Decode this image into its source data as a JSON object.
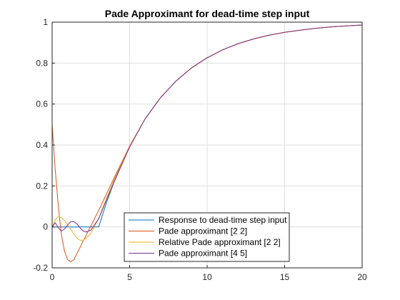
{
  "chart_data": {
    "type": "line",
    "title": "Pade Approximant for dead-time step input",
    "xlabel": "",
    "ylabel": "",
    "xlim": [
      0,
      20
    ],
    "ylim": [
      -0.2,
      1
    ],
    "x_ticks": [
      "0",
      "5",
      "10",
      "15",
      "20"
    ],
    "y_ticks": [
      "-0.2",
      "0",
      "0.2",
      "0.4",
      "0.6",
      "0.8",
      "1"
    ],
    "grid": true,
    "legend_position": "bottom-center",
    "series": [
      {
        "name": "Response to dead-time step input",
        "color": "#0072BD",
        "points": [
          [
            0,
            0
          ],
          [
            3,
            0
          ],
          [
            3.5,
            0.117
          ],
          [
            4,
            0.221
          ],
          [
            5,
            0.393
          ],
          [
            6,
            0.528
          ],
          [
            7,
            0.632
          ],
          [
            8,
            0.713
          ],
          [
            9,
            0.777
          ],
          [
            10,
            0.826
          ],
          [
            11,
            0.865
          ],
          [
            12,
            0.895
          ],
          [
            13,
            0.918
          ],
          [
            14,
            0.936
          ],
          [
            15,
            0.95
          ],
          [
            16,
            0.961
          ],
          [
            17,
            0.97
          ],
          [
            18,
            0.977
          ],
          [
            19,
            0.982
          ],
          [
            20,
            0.986
          ]
        ]
      },
      {
        "name": "Pade approximant [2 2]",
        "color": "#D95319",
        "points": [
          [
            0,
            0.5
          ],
          [
            0.2,
            0.28
          ],
          [
            0.4,
            0.1
          ],
          [
            0.6,
            -0.04
          ],
          [
            0.8,
            -0.12
          ],
          [
            1.0,
            -0.16
          ],
          [
            1.2,
            -0.17
          ],
          [
            1.4,
            -0.16
          ],
          [
            1.6,
            -0.13
          ],
          [
            1.8,
            -0.1
          ],
          [
            2.0,
            -0.07
          ],
          [
            2.4,
            -0.01
          ],
          [
            3.0,
            0.08
          ],
          [
            3.5,
            0.16
          ],
          [
            4,
            0.24
          ],
          [
            5,
            0.395
          ],
          [
            6,
            0.528
          ],
          [
            7,
            0.632
          ],
          [
            8,
            0.713
          ],
          [
            9,
            0.777
          ],
          [
            10,
            0.826
          ],
          [
            11,
            0.865
          ],
          [
            12,
            0.895
          ],
          [
            13,
            0.918
          ],
          [
            14,
            0.936
          ],
          [
            15,
            0.95
          ],
          [
            16,
            0.961
          ],
          [
            17,
            0.97
          ],
          [
            18,
            0.977
          ],
          [
            19,
            0.982
          ],
          [
            20,
            0.986
          ]
        ]
      },
      {
        "name": "Relative Pade approximant [2 2]",
        "color": "#EDB120",
        "points": [
          [
            0,
            0
          ],
          [
            0.2,
            0.035
          ],
          [
            0.4,
            0.05
          ],
          [
            0.6,
            0.045
          ],
          [
            0.8,
            0.03
          ],
          [
            1.0,
            0.01
          ],
          [
            1.2,
            -0.01
          ],
          [
            1.4,
            -0.035
          ],
          [
            1.6,
            -0.055
          ],
          [
            1.8,
            -0.065
          ],
          [
            2.0,
            -0.065
          ],
          [
            2.2,
            -0.055
          ],
          [
            2.5,
            -0.03
          ],
          [
            3.0,
            0.04
          ],
          [
            3.5,
            0.14
          ],
          [
            4,
            0.23
          ],
          [
            5,
            0.393
          ],
          [
            6,
            0.528
          ],
          [
            7,
            0.632
          ],
          [
            8,
            0.713
          ],
          [
            9,
            0.777
          ],
          [
            10,
            0.826
          ],
          [
            11,
            0.865
          ],
          [
            12,
            0.895
          ],
          [
            13,
            0.918
          ],
          [
            14,
            0.936
          ],
          [
            15,
            0.95
          ],
          [
            16,
            0.961
          ],
          [
            17,
            0.97
          ],
          [
            18,
            0.977
          ],
          [
            19,
            0.982
          ],
          [
            20,
            0.986
          ]
        ]
      },
      {
        "name": "Pade approximant [4 5]",
        "color": "#7E2F8E",
        "points": [
          [
            0,
            0
          ],
          [
            0.2,
            0.02
          ],
          [
            0.4,
            -0.005
          ],
          [
            0.6,
            -0.02
          ],
          [
            0.8,
            -0.01
          ],
          [
            1.0,
            0.01
          ],
          [
            1.2,
            0.025
          ],
          [
            1.4,
            0.025
          ],
          [
            1.6,
            0.015
          ],
          [
            1.8,
            -0.005
          ],
          [
            2.0,
            -0.02
          ],
          [
            2.2,
            -0.025
          ],
          [
            2.5,
            -0.015
          ],
          [
            3.0,
            0.04
          ],
          [
            3.5,
            0.13
          ],
          [
            4,
            0.22
          ],
          [
            5,
            0.39
          ],
          [
            6,
            0.528
          ],
          [
            7,
            0.632
          ],
          [
            8,
            0.713
          ],
          [
            9,
            0.777
          ],
          [
            10,
            0.826
          ],
          [
            11,
            0.865
          ],
          [
            12,
            0.895
          ],
          [
            13,
            0.918
          ],
          [
            14,
            0.936
          ],
          [
            15,
            0.95
          ],
          [
            16,
            0.961
          ],
          [
            17,
            0.97
          ],
          [
            18,
            0.977
          ],
          [
            19,
            0.982
          ],
          [
            20,
            0.986
          ]
        ]
      }
    ]
  }
}
